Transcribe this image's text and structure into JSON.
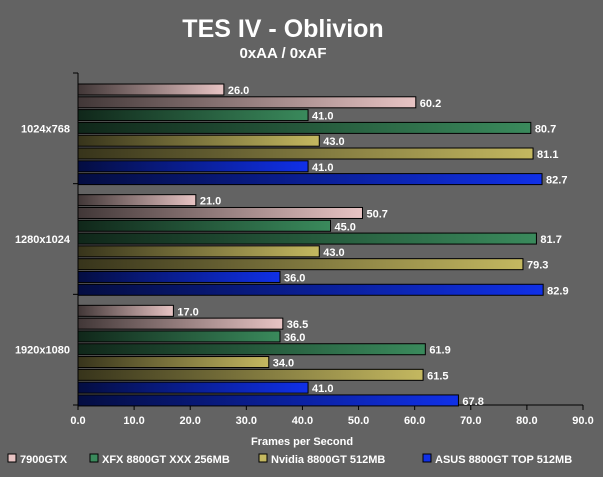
{
  "chart_data": {
    "type": "bar",
    "orientation": "horizontal",
    "title": "TES IV - Oblivion",
    "subtitle": "0xAA / 0xAF",
    "xlabel": "Frames per Second",
    "ylabel": "",
    "xlim": [
      0,
      90
    ],
    "xticks": [
      "0.0",
      "10.0",
      "20.0",
      "30.0",
      "40.0",
      "50.0",
      "60.0",
      "70.0",
      "80.0",
      "90.0"
    ],
    "grid": false,
    "legend": "bottom",
    "categories": [
      "1024x768",
      "1280x1024",
      "1920x1080"
    ],
    "series": [
      {
        "name": "7900GTX",
        "color": "#e8c4c4",
        "min": [
          26.0,
          21.0,
          17.0
        ],
        "max": [
          60.2,
          50.7,
          36.5
        ]
      },
      {
        "name": "XFX 8800GT XXX 256MB",
        "color": "#3a8a5c",
        "min": [
          41.0,
          45.0,
          36.0
        ],
        "max": [
          80.7,
          81.7,
          61.9
        ]
      },
      {
        "name": "Nvidia 8800GT 512MB",
        "color": "#c4b860",
        "min": [
          43.0,
          43.0,
          34.0
        ],
        "max": [
          81.1,
          79.3,
          61.5
        ]
      },
      {
        "name": "ASUS 8800GT TOP 512MB",
        "color": "#1030e8",
        "min": [
          41.0,
          36.0,
          41.0
        ],
        "max": [
          82.7,
          82.9,
          67.8
        ]
      }
    ]
  }
}
